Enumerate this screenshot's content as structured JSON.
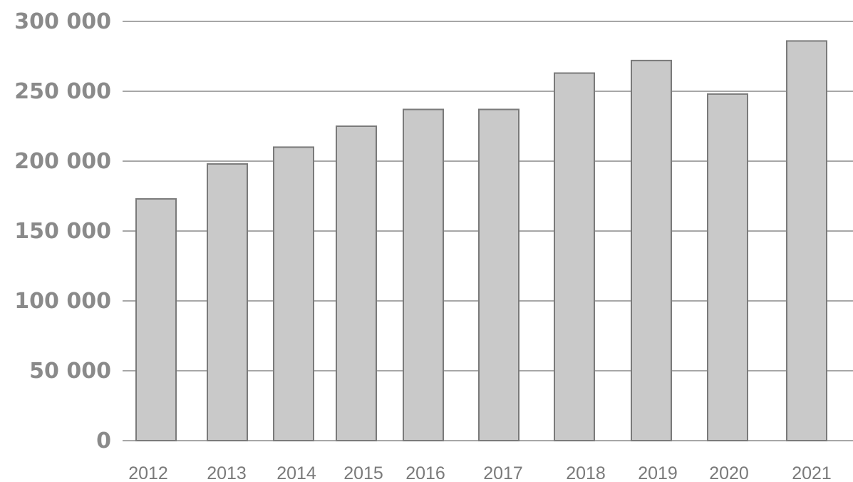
{
  "chart_data": {
    "type": "bar",
    "title": "",
    "xlabel": "",
    "ylabel": "",
    "categories": [
      "2012",
      "2013",
      "2014",
      "2015",
      "2016",
      "2017",
      "2018",
      "2019",
      "2020",
      "2021"
    ],
    "values": [
      173000,
      198000,
      210000,
      225000,
      237000,
      237000,
      263000,
      272000,
      248000,
      286000
    ],
    "ylim": [
      0,
      300000
    ],
    "yticks": [
      0,
      50000,
      100000,
      150000,
      200000,
      250000,
      300000
    ],
    "ytick_labels": [
      "0",
      "50 000",
      "100 000",
      "150 000",
      "200 000",
      "250 000",
      "300 000"
    ],
    "grid": true,
    "legend": "none",
    "colors": {
      "bar_fill": "#c9c9c9",
      "bar_stroke": "#7a7a7a",
      "grid": "#8a8a8a",
      "text": "#8a8a8a"
    }
  }
}
